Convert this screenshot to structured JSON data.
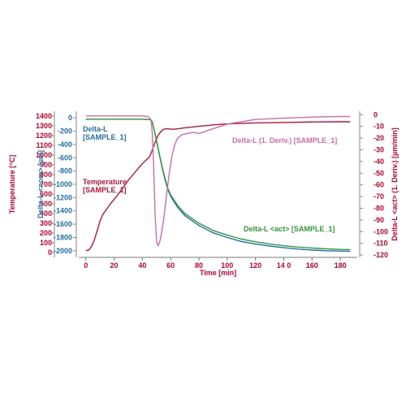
{
  "chart_data": {
    "type": "line",
    "xlabel": "Time [min]",
    "xlim": [
      -5,
      192
    ],
    "xticks": [
      "0",
      "20",
      "40",
      "60",
      "80",
      "100",
      "120",
      "14 0",
      "160",
      "180"
    ],
    "xtick_values": [
      0,
      20,
      40,
      60,
      80,
      100,
      120,
      140,
      160,
      180
    ],
    "axes": {
      "temp": {
        "label": "Temperature [°C]",
        "color": "#d1002a",
        "ylim": [
          -50,
          1450
        ],
        "ticks": [
          0,
          100,
          200,
          300,
          400,
          500,
          600,
          700,
          800,
          900,
          1000,
          1100,
          1200,
          1300,
          1400
        ]
      },
      "nom": {
        "label": "Delta-L <nom> [µm]",
        "color": "#1f6fb5",
        "ylim": [
          -2100,
          100
        ],
        "ticks": [
          0,
          -200,
          -400,
          -600,
          -800,
          -1000,
          -1200,
          -1400,
          -1600,
          -1800,
          -2000
        ]
      },
      "deriv": {
        "label": "Delta-L <act> (1. Deriv.) [µm/min]",
        "color": "#d1002a",
        "ylim": [
          -122,
          3
        ],
        "ticks": [
          0,
          -10,
          -20,
          -30,
          -40,
          -50,
          -60,
          -70,
          -80,
          -90,
          -100,
          -110,
          -120
        ]
      }
    },
    "series": [
      {
        "key": "temperature",
        "axis": "temp",
        "color": "#cc1133",
        "annotation": [
          "Temperature",
          "[SAMPLE_1]"
        ],
        "x": [
          0,
          2,
          4,
          6,
          8,
          10,
          12,
          15,
          18,
          22,
          26,
          30,
          34,
          38,
          42,
          45,
          47,
          49,
          51,
          53,
          55,
          57,
          59,
          62,
          66,
          70,
          80,
          90,
          100,
          120,
          140,
          160,
          180,
          187
        ],
        "y": [
          20,
          25,
          60,
          130,
          220,
          320,
          390,
          450,
          510,
          580,
          660,
          740,
          810,
          880,
          940,
          980,
          1050,
          1130,
          1200,
          1240,
          1265,
          1270,
          1268,
          1265,
          1272,
          1280,
          1295,
          1310,
          1320,
          1330,
          1335,
          1340,
          1342,
          1342
        ]
      },
      {
        "key": "delta-l-nom",
        "axis": "nom",
        "color": "#1f6fb5",
        "annotation": [
          "Delta-L",
          "[SAMPLE_1]"
        ],
        "x": [
          0,
          10,
          20,
          30,
          40,
          44,
          46,
          47,
          48,
          50,
          52,
          54,
          56,
          58,
          60,
          65,
          70,
          80,
          90,
          100,
          110,
          120,
          130,
          140,
          150,
          160,
          170,
          180,
          187
        ],
        "y": [
          -20,
          -20,
          -20,
          -20,
          -20,
          -25,
          -30,
          -60,
          -150,
          -350,
          -550,
          -750,
          -930,
          -1080,
          -1180,
          -1350,
          -1470,
          -1620,
          -1730,
          -1800,
          -1860,
          -1900,
          -1930,
          -1955,
          -1975,
          -1990,
          -2000,
          -2005,
          -2008
        ]
      },
      {
        "key": "delta-l-act",
        "axis": "nom",
        "color": "#2e9e35",
        "annotation": [
          "Delta-L <act> [SAMPLE_1]"
        ],
        "x": [
          0,
          10,
          20,
          30,
          40,
          44,
          46,
          47,
          48,
          50,
          52,
          54,
          56,
          58,
          60,
          65,
          70,
          80,
          90,
          100,
          110,
          120,
          130,
          140,
          150,
          160,
          170,
          180,
          187
        ],
        "y": [
          -20,
          -20,
          -20,
          -20,
          -20,
          -25,
          -30,
          -60,
          -150,
          -345,
          -540,
          -735,
          -910,
          -1060,
          -1160,
          -1320,
          -1440,
          -1585,
          -1695,
          -1765,
          -1825,
          -1865,
          -1900,
          -1925,
          -1945,
          -1960,
          -1972,
          -1980,
          -1983
        ]
      },
      {
        "key": "derivative",
        "axis": "deriv",
        "color": "#d96aa8",
        "annotation": [
          "Delta-L (1. Deriv.) [SAMPLE_1]"
        ],
        "x": [
          0,
          10,
          20,
          30,
          40,
          44,
          46,
          47,
          48,
          49,
          50,
          51,
          52,
          53,
          55,
          57,
          59,
          61,
          63,
          65,
          68,
          72,
          76,
          80,
          85,
          90,
          100,
          110,
          120,
          140,
          160,
          180,
          187
        ],
        "y": [
          -1,
          -1,
          -1,
          -1,
          -1,
          -1.5,
          -4,
          -15,
          -45,
          -85,
          -108,
          -112,
          -110,
          -105,
          -90,
          -70,
          -50,
          -35,
          -25,
          -20,
          -17,
          -16,
          -15,
          -16,
          -14,
          -12,
          -8,
          -6,
          -4,
          -3,
          -2,
          -1.5,
          -1.5
        ]
      }
    ]
  }
}
